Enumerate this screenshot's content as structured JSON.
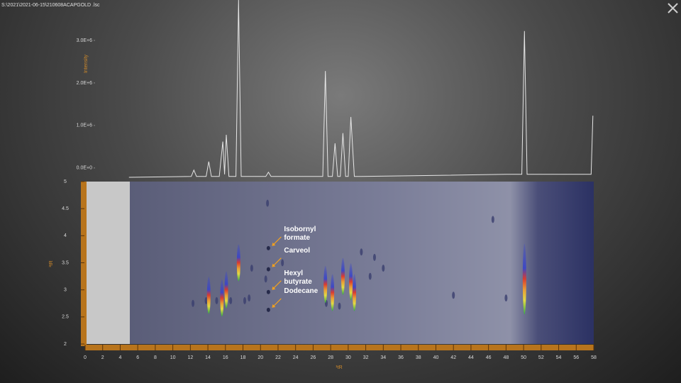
{
  "file_path": "S:\\2021\\2021-06-15\\210608ACAPGOLD .lsc",
  "chart_data": [
    {
      "type": "line",
      "ylabel": "Intensity",
      "xlim": [
        0,
        58
      ],
      "ylim": [
        -220000,
        3950000
      ],
      "yticks": [
        {
          "value": 0,
          "label": "0.0E+0"
        },
        {
          "value": 1000000,
          "label": "1.0E+6"
        },
        {
          "value": 2000000,
          "label": "2.0E+6"
        },
        {
          "value": 3000000,
          "label": "3.0E+6"
        }
      ],
      "series": [
        {
          "color": "#e6e6e6",
          "x": [
            5,
            12.1,
            12.4,
            12.7,
            13.8,
            14.1,
            14.4,
            15.3,
            15.7,
            15.9,
            16.1,
            16.4,
            17.2,
            17.5,
            17.8,
            20.6,
            20.9,
            21.2,
            27.1,
            27.4,
            27.7,
            28.2,
            28.5,
            28.8,
            29.1,
            29.4,
            29.7,
            30,
            30.3,
            30.7,
            31.5,
            48,
            49.8,
            50.1,
            50.4,
            57.7,
            57.9
          ],
          "values": [
            -220000,
            -200000,
            -50000,
            -200000,
            -200000,
            150000,
            -200000,
            -200000,
            620000,
            -150000,
            780000,
            -200000,
            -200000,
            3950000,
            -200000,
            -200000,
            -100000,
            -200000,
            -200000,
            2280000,
            -200000,
            -200000,
            580000,
            -200000,
            -200000,
            820000,
            -200000,
            -200000,
            1200000,
            -200000,
            -200000,
            -150000,
            -150000,
            3220000,
            -150000,
            -150000,
            1230000
          ]
        }
      ]
    },
    {
      "type": "scatter",
      "xlabel": "¹tR",
      "ylabel": "²tR",
      "xlim": [
        0,
        58
      ],
      "ylim": [
        2,
        5
      ],
      "xticks": [
        0,
        2,
        4,
        6,
        8,
        10,
        12,
        14,
        16,
        18,
        20,
        22,
        24,
        26,
        28,
        30,
        32,
        34,
        36,
        38,
        40,
        42,
        44,
        46,
        48,
        50,
        52,
        54,
        56,
        58
      ],
      "yticks": [
        2,
        2.5,
        3,
        3.5,
        4,
        4.5,
        5
      ],
      "series": [
        {
          "color": "#3a3f6e",
          "x": [
            12.3,
            13.8,
            15,
            16.6,
            18.2,
            18.7,
            19,
            20.6,
            20.8,
            31.5,
            33,
            34,
            32.5,
            46.5,
            48,
            42,
            27.5,
            29,
            22.5
          ],
          "values": [
            2.75,
            2.8,
            2.8,
            2.8,
            2.8,
            2.85,
            3.4,
            3.2,
            4.6,
            3.7,
            3.6,
            3.4,
            3.25,
            4.3,
            2.85,
            2.9,
            2.75,
            2.7,
            3.5
          ]
        },
        {
          "color": "#d8402a",
          "x": [
            14.1,
            15.6,
            16.1,
            17.5,
            27.4,
            28.2,
            29.4,
            30.3,
            30.7,
            50.1
          ],
          "values": [
            2.9,
            2.85,
            3.0,
            3.5,
            3.1,
            2.95,
            3.25,
            3.15,
            2.95,
            3.2
          ]
        }
      ],
      "annotations": [
        {
          "text": "Isobornyl formate",
          "x": 20.9,
          "y": 3.77
        },
        {
          "text": "Carveol",
          "x": 20.9,
          "y": 3.38
        },
        {
          "text": "Hexyl butyrate",
          "x": 20.9,
          "y": 2.96
        },
        {
          "text": "Dodecane",
          "x": 20.9,
          "y": 2.63
        }
      ]
    }
  ]
}
